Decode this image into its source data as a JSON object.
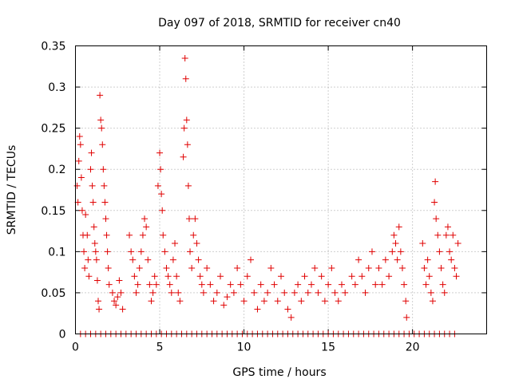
{
  "chart_data": {
    "type": "scatter",
    "title": "Day 097 of 2018, SRMTID for receiver cn40",
    "xlabel": "GPS time / hours",
    "ylabel": "SRMTID / TECUs",
    "xlim": [
      0,
      24.4
    ],
    "ylim": [
      0,
      0.35
    ],
    "xticks": [
      0,
      5,
      10,
      15,
      20
    ],
    "xtick_labels": [
      "0",
      "5",
      "10",
      "15",
      "20"
    ],
    "yticks": [
      0,
      0.05,
      0.1,
      0.15,
      0.2,
      0.25,
      0.3,
      0.35
    ],
    "ytick_labels": [
      "0",
      "0.05",
      "0.1",
      "0.15",
      "0.2",
      "0.25",
      "0.3",
      "0.35"
    ],
    "grid": true,
    "marker": "plus",
    "series": [
      {
        "name": "SRMTID",
        "color": "#e00000",
        "points": [
          [
            0.1,
            0.18
          ],
          [
            0.15,
            0.16
          ],
          [
            0.2,
            0.21
          ],
          [
            0.25,
            0.24
          ],
          [
            0.3,
            0.23
          ],
          [
            0.35,
            0.19
          ],
          [
            0.4,
            0.15
          ],
          [
            0.45,
            0.12
          ],
          [
            0.5,
            0.1
          ],
          [
            0.55,
            0.08
          ],
          [
            0.6,
            0.145
          ],
          [
            0.7,
            0.12
          ],
          [
            0.75,
            0.09
          ],
          [
            0.8,
            0.07
          ],
          [
            0.9,
            0.2
          ],
          [
            0.95,
            0.22
          ],
          [
            1.0,
            0.18
          ],
          [
            1.05,
            0.16
          ],
          [
            1.1,
            0.13
          ],
          [
            1.15,
            0.11
          ],
          [
            1.2,
            0.1
          ],
          [
            1.25,
            0.09
          ],
          [
            1.3,
            0.065
          ],
          [
            1.35,
            0.04
          ],
          [
            1.4,
            0.03
          ],
          [
            1.45,
            0.29
          ],
          [
            1.5,
            0.26
          ],
          [
            1.55,
            0.25
          ],
          [
            1.6,
            0.23
          ],
          [
            1.65,
            0.2
          ],
          [
            1.7,
            0.18
          ],
          [
            1.75,
            0.16
          ],
          [
            1.8,
            0.14
          ],
          [
            1.85,
            0.12
          ],
          [
            1.9,
            0.1
          ],
          [
            1.95,
            0.08
          ],
          [
            2.0,
            0.06
          ],
          [
            2.2,
            0.05
          ],
          [
            2.3,
            0.04
          ],
          [
            2.4,
            0.035
          ],
          [
            2.5,
            0.045
          ],
          [
            2.6,
            0.065
          ],
          [
            2.7,
            0.05
          ],
          [
            2.8,
            0.03
          ],
          [
            3.2,
            0.12
          ],
          [
            3.3,
            0.1
          ],
          [
            3.4,
            0.09
          ],
          [
            3.5,
            0.07
          ],
          [
            3.6,
            0.05
          ],
          [
            3.7,
            0.06
          ],
          [
            3.8,
            0.08
          ],
          [
            3.9,
            0.1
          ],
          [
            4.0,
            0.12
          ],
          [
            4.1,
            0.14
          ],
          [
            4.2,
            0.13
          ],
          [
            4.3,
            0.09
          ],
          [
            4.4,
            0.06
          ],
          [
            4.5,
            0.04
          ],
          [
            4.6,
            0.05
          ],
          [
            4.7,
            0.07
          ],
          [
            4.8,
            0.06
          ],
          [
            4.9,
            0.18
          ],
          [
            5.0,
            0.22
          ],
          [
            5.05,
            0.2
          ],
          [
            5.1,
            0.17
          ],
          [
            5.15,
            0.15
          ],
          [
            5.2,
            0.12
          ],
          [
            5.3,
            0.1
          ],
          [
            5.4,
            0.08
          ],
          [
            5.5,
            0.07
          ],
          [
            5.6,
            0.06
          ],
          [
            5.7,
            0.05
          ],
          [
            5.8,
            0.09
          ],
          [
            5.9,
            0.11
          ],
          [
            6.0,
            0.07
          ],
          [
            6.1,
            0.05
          ],
          [
            6.2,
            0.04
          ],
          [
            6.4,
            0.215
          ],
          [
            6.45,
            0.25
          ],
          [
            6.5,
            0.335
          ],
          [
            6.55,
            0.31
          ],
          [
            6.6,
            0.26
          ],
          [
            6.65,
            0.23
          ],
          [
            6.7,
            0.18
          ],
          [
            6.75,
            0.14
          ],
          [
            6.8,
            0.1
          ],
          [
            6.9,
            0.08
          ],
          [
            7.0,
            0.12
          ],
          [
            7.1,
            0.14
          ],
          [
            7.2,
            0.11
          ],
          [
            7.3,
            0.09
          ],
          [
            7.4,
            0.07
          ],
          [
            7.5,
            0.06
          ],
          [
            7.6,
            0.05
          ],
          [
            7.8,
            0.08
          ],
          [
            8.0,
            0.06
          ],
          [
            8.2,
            0.04
          ],
          [
            8.4,
            0.05
          ],
          [
            8.6,
            0.07
          ],
          [
            8.8,
            0.035
          ],
          [
            9.0,
            0.045
          ],
          [
            9.2,
            0.06
          ],
          [
            9.4,
            0.05
          ],
          [
            9.6,
            0.08
          ],
          [
            9.8,
            0.06
          ],
          [
            10.0,
            0.04
          ],
          [
            10.2,
            0.07
          ],
          [
            10.4,
            0.09
          ],
          [
            10.6,
            0.05
          ],
          [
            10.8,
            0.03
          ],
          [
            11.0,
            0.06
          ],
          [
            11.2,
            0.04
          ],
          [
            11.4,
            0.05
          ],
          [
            11.6,
            0.08
          ],
          [
            11.8,
            0.06
          ],
          [
            12.0,
            0.04
          ],
          [
            12.2,
            0.07
          ],
          [
            12.4,
            0.05
          ],
          [
            12.6,
            0.03
          ],
          [
            12.8,
            0.02
          ],
          [
            13.0,
            0.05
          ],
          [
            13.2,
            0.06
          ],
          [
            13.4,
            0.04
          ],
          [
            13.6,
            0.07
          ],
          [
            13.8,
            0.05
          ],
          [
            14.0,
            0.06
          ],
          [
            14.2,
            0.08
          ],
          [
            14.4,
            0.05
          ],
          [
            14.6,
            0.07
          ],
          [
            14.8,
            0.04
          ],
          [
            15.0,
            0.06
          ],
          [
            15.2,
            0.08
          ],
          [
            15.4,
            0.05
          ],
          [
            15.6,
            0.04
          ],
          [
            15.8,
            0.06
          ],
          [
            16.0,
            0.05
          ],
          [
            16.4,
            0.07
          ],
          [
            16.6,
            0.06
          ],
          [
            16.8,
            0.09
          ],
          [
            17.0,
            0.07
          ],
          [
            17.2,
            0.05
          ],
          [
            17.4,
            0.08
          ],
          [
            17.6,
            0.1
          ],
          [
            17.8,
            0.06
          ],
          [
            18.0,
            0.08
          ],
          [
            18.2,
            0.06
          ],
          [
            18.4,
            0.09
          ],
          [
            18.6,
            0.07
          ],
          [
            18.8,
            0.1
          ],
          [
            18.9,
            0.12
          ],
          [
            19.0,
            0.11
          ],
          [
            19.1,
            0.09
          ],
          [
            19.2,
            0.13
          ],
          [
            19.3,
            0.1
          ],
          [
            19.4,
            0.08
          ],
          [
            19.5,
            0.06
          ],
          [
            19.6,
            0.04
          ],
          [
            19.65,
            0.02
          ],
          [
            20.6,
            0.11
          ],
          [
            20.7,
            0.08
          ],
          [
            20.8,
            0.06
          ],
          [
            20.9,
            0.09
          ],
          [
            21.0,
            0.07
          ],
          [
            21.1,
            0.05
          ],
          [
            21.2,
            0.04
          ],
          [
            21.3,
            0.16
          ],
          [
            21.35,
            0.185
          ],
          [
            21.4,
            0.14
          ],
          [
            21.5,
            0.12
          ],
          [
            21.6,
            0.1
          ],
          [
            21.7,
            0.08
          ],
          [
            21.8,
            0.06
          ],
          [
            21.9,
            0.05
          ],
          [
            22.0,
            0.12
          ],
          [
            22.1,
            0.13
          ],
          [
            22.2,
            0.1
          ],
          [
            22.3,
            0.09
          ],
          [
            22.4,
            0.12
          ],
          [
            22.5,
            0.08
          ],
          [
            22.6,
            0.07
          ],
          [
            22.7,
            0.11
          ],
          [
            0.3,
            0
          ],
          [
            0.6,
            0
          ],
          [
            0.9,
            0
          ],
          [
            1.2,
            0
          ],
          [
            1.5,
            0
          ],
          [
            1.8,
            0
          ],
          [
            2.1,
            0
          ],
          [
            2.4,
            0
          ],
          [
            2.7,
            0
          ],
          [
            3.0,
            0
          ],
          [
            3.3,
            0
          ],
          [
            3.6,
            0
          ],
          [
            3.9,
            0
          ],
          [
            4.2,
            0
          ],
          [
            4.5,
            0
          ],
          [
            4.8,
            0
          ],
          [
            5.1,
            0
          ],
          [
            5.4,
            0
          ],
          [
            5.7,
            0
          ],
          [
            6.0,
            0
          ],
          [
            6.3,
            0
          ],
          [
            6.6,
            0
          ],
          [
            6.9,
            0
          ],
          [
            7.2,
            0
          ],
          [
            7.5,
            0
          ],
          [
            7.8,
            0
          ],
          [
            8.1,
            0
          ],
          [
            8.4,
            0
          ],
          [
            8.7,
            0
          ],
          [
            9.0,
            0
          ],
          [
            9.3,
            0
          ],
          [
            9.6,
            0
          ],
          [
            9.9,
            0
          ],
          [
            10.2,
            0
          ],
          [
            10.5,
            0
          ],
          [
            10.8,
            0
          ],
          [
            11.1,
            0
          ],
          [
            11.4,
            0
          ],
          [
            11.7,
            0
          ],
          [
            12.0,
            0
          ],
          [
            12.3,
            0
          ],
          [
            12.6,
            0
          ],
          [
            12.9,
            0
          ],
          [
            13.2,
            0
          ],
          [
            13.5,
            0
          ],
          [
            13.8,
            0
          ],
          [
            14.1,
            0
          ],
          [
            14.4,
            0
          ],
          [
            14.7,
            0
          ],
          [
            15.0,
            0
          ],
          [
            15.3,
            0
          ],
          [
            15.6,
            0
          ],
          [
            15.9,
            0
          ],
          [
            16.2,
            0
          ],
          [
            16.5,
            0
          ],
          [
            16.8,
            0
          ],
          [
            17.1,
            0
          ],
          [
            17.4,
            0
          ],
          [
            17.7,
            0
          ],
          [
            18.0,
            0
          ],
          [
            18.3,
            0
          ],
          [
            18.6,
            0
          ],
          [
            18.9,
            0
          ],
          [
            19.2,
            0
          ],
          [
            19.5,
            0
          ],
          [
            19.8,
            0
          ],
          [
            20.1,
            0
          ],
          [
            20.4,
            0
          ],
          [
            20.7,
            0
          ],
          [
            21.0,
            0
          ],
          [
            21.3,
            0
          ],
          [
            21.6,
            0
          ],
          [
            21.9,
            0
          ],
          [
            22.2,
            0
          ],
          [
            22.5,
            0
          ]
        ]
      }
    ]
  }
}
